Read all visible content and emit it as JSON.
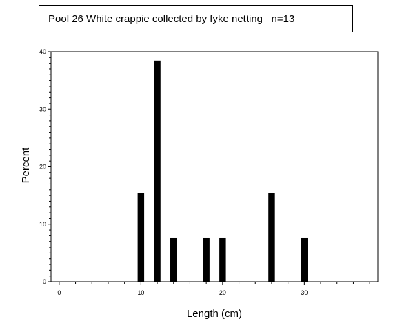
{
  "chart_data": {
    "type": "bar",
    "title": "Pool 26 White crappie collected by fyke netting   n=13",
    "xlabel": "Length (cm)",
    "ylabel": "Percent",
    "xlim": [
      -1,
      39
    ],
    "ylim": [
      0,
      40
    ],
    "x_ticks": [
      0,
      10,
      20,
      30
    ],
    "y_ticks": [
      0,
      10,
      20,
      30,
      40
    ],
    "bar_width": 0.8,
    "bars": [
      {
        "x": 10,
        "value": 15.38
      },
      {
        "x": 12,
        "value": 38.46
      },
      {
        "x": 14,
        "value": 7.69
      },
      {
        "x": 18,
        "value": 7.69
      },
      {
        "x": 20,
        "value": 7.69
      },
      {
        "x": 26,
        "value": 15.38
      },
      {
        "x": 30,
        "value": 7.69
      }
    ],
    "bar_color": "#000000",
    "grid": false,
    "legend": "none"
  }
}
